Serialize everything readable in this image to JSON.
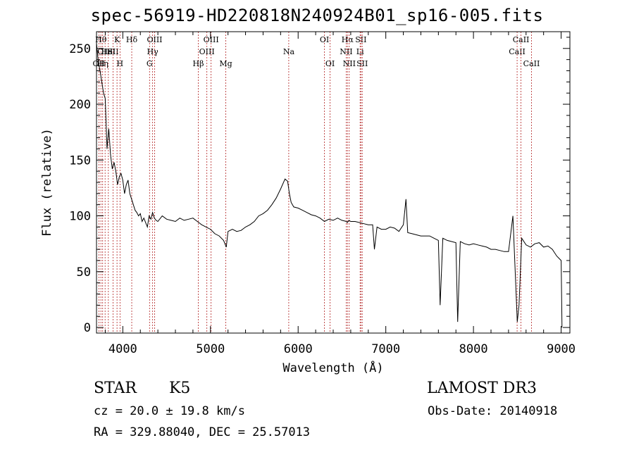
{
  "header": {
    "title": "spec-56919-HD220818N240924B01_sp16-005.fits"
  },
  "info": {
    "object_class": "STAR",
    "subclass": "K5",
    "survey": "LAMOST DR3",
    "redshift": "cz = 20.0 ± 19.8 km/s",
    "obs_date": "Obs-Date: 20140918",
    "coordinates": "RA = 329.88040, DEC =  25.57013"
  },
  "chart_data": {
    "type": "line",
    "title": "spec-56919-HD220818N240924B01_sp16-005.fits",
    "xlabel": "Wavelength (Å)",
    "ylabel": "Flux (relative)",
    "xlim": [
      3700,
      9100
    ],
    "ylim": [
      -5,
      265
    ],
    "x_ticks": [
      4000,
      5000,
      6000,
      7000,
      8000,
      9000
    ],
    "y_ticks": [
      0,
      50,
      100,
      150,
      200,
      250
    ],
    "grid": false,
    "series": [
      {
        "name": "flux",
        "x": [
          3700,
          3720,
          3740,
          3760,
          3780,
          3800,
          3820,
          3840,
          3860,
          3880,
          3900,
          3920,
          3940,
          3960,
          3980,
          4000,
          4020,
          4040,
          4060,
          4080,
          4100,
          4120,
          4140,
          4160,
          4180,
          4200,
          4220,
          4240,
          4260,
          4280,
          4300,
          4320,
          4340,
          4360,
          4380,
          4400,
          4450,
          4500,
          4550,
          4600,
          4650,
          4700,
          4750,
          4800,
          4850,
          4900,
          4950,
          5000,
          5050,
          5100,
          5150,
          5180,
          5200,
          5250,
          5300,
          5350,
          5400,
          5450,
          5500,
          5550,
          5600,
          5650,
          5700,
          5750,
          5800,
          5850,
          5880,
          5900,
          5920,
          5950,
          6000,
          6050,
          6100,
          6150,
          6200,
          6250,
          6300,
          6350,
          6400,
          6450,
          6500,
          6550,
          6560,
          6580,
          6600,
          6650,
          6700,
          6750,
          6800,
          6850,
          6870,
          6900,
          6950,
          7000,
          7050,
          7100,
          7150,
          7200,
          7230,
          7250,
          7300,
          7350,
          7400,
          7450,
          7500,
          7550,
          7600,
          7620,
          7650,
          7700,
          7750,
          7800,
          7820,
          7850,
          7900,
          7950,
          8000,
          8050,
          8100,
          8150,
          8200,
          8250,
          8300,
          8350,
          8400,
          8450,
          8500,
          8520,
          8550,
          8600,
          8650,
          8700,
          8750,
          8800,
          8850,
          8900,
          8950,
          9000,
          9010
        ],
        "y": [
          255,
          238,
          230,
          220,
          210,
          205,
          160,
          178,
          155,
          142,
          148,
          140,
          128,
          135,
          138,
          132,
          120,
          128,
          132,
          120,
          115,
          110,
          105,
          103,
          100,
          102,
          95,
          98,
          94,
          90,
          100,
          97,
          103,
          98,
          96,
          95,
          100,
          97,
          96,
          95,
          98,
          96,
          97,
          98,
          95,
          92,
          90,
          88,
          84,
          82,
          78,
          72,
          86,
          88,
          86,
          87,
          90,
          92,
          95,
          100,
          102,
          105,
          110,
          116,
          124,
          133,
          131,
          120,
          112,
          108,
          107,
          105,
          103,
          101,
          100,
          98,
          95,
          97,
          96,
          98,
          96,
          95,
          94,
          96,
          95,
          95,
          94,
          93,
          92,
          92,
          70,
          90,
          88,
          88,
          90,
          89,
          86,
          92,
          115,
          85,
          84,
          83,
          82,
          82,
          82,
          80,
          78,
          20,
          80,
          78,
          77,
          76,
          5,
          77,
          75,
          74,
          75,
          74,
          73,
          72,
          70,
          70,
          69,
          68,
          68,
          100,
          5,
          20,
          80,
          74,
          72,
          75,
          76,
          72,
          73,
          70,
          64,
          60,
          0
        ]
      }
    ],
    "line_markers": [
      {
        "wavelength": 3727,
        "label": "OII",
        "row": 2
      },
      {
        "wavelength": 3750,
        "label": "Hθ",
        "row": 0
      },
      {
        "wavelength": 3770,
        "label": "Hη",
        "row": 2
      },
      {
        "wavelength": 3798,
        "label": "OIII",
        "row": 1
      },
      {
        "wavelength": 3835,
        "label": "HeI",
        "row": 1
      },
      {
        "wavelength": 3889,
        "label": "SII",
        "row": 1
      },
      {
        "wavelength": 3934,
        "label": "K",
        "row": 0
      },
      {
        "wavelength": 3968,
        "label": "H",
        "row": 2
      },
      {
        "wavelength": 4102,
        "label": "Hδ",
        "row": 0
      },
      {
        "wavelength": 4305,
        "label": "G",
        "row": 2
      },
      {
        "wavelength": 4340,
        "label": "Hγ",
        "row": 1
      },
      {
        "wavelength": 4363,
        "label": "OIII",
        "row": 0
      },
      {
        "wavelength": 4861,
        "label": "Hβ",
        "row": 2
      },
      {
        "wavelength": 4959,
        "label": "OIII",
        "row": 1
      },
      {
        "wavelength": 5007,
        "label": "OIII",
        "row": 0
      },
      {
        "wavelength": 5175,
        "label": "Mg",
        "row": 2
      },
      {
        "wavelength": 5893,
        "label": "Na",
        "row": 1
      },
      {
        "wavelength": 6300,
        "label": "OI",
        "row": 0
      },
      {
        "wavelength": 6364,
        "label": "OI",
        "row": 2
      },
      {
        "wavelength": 6548,
        "label": "NII",
        "row": 1
      },
      {
        "wavelength": 6563,
        "label": "Hα",
        "row": 0
      },
      {
        "wavelength": 6583,
        "label": "NII",
        "row": 2
      },
      {
        "wavelength": 6707,
        "label": "Li",
        "row": 1
      },
      {
        "wavelength": 6716,
        "label": "SII",
        "row": 0
      },
      {
        "wavelength": 6731,
        "label": "SII",
        "row": 2
      },
      {
        "wavelength": 8498,
        "label": "CaII",
        "row": 1
      },
      {
        "wavelength": 8542,
        "label": "CaII",
        "row": 0
      },
      {
        "wavelength": 8662,
        "label": "CaII",
        "row": 2
      }
    ]
  }
}
